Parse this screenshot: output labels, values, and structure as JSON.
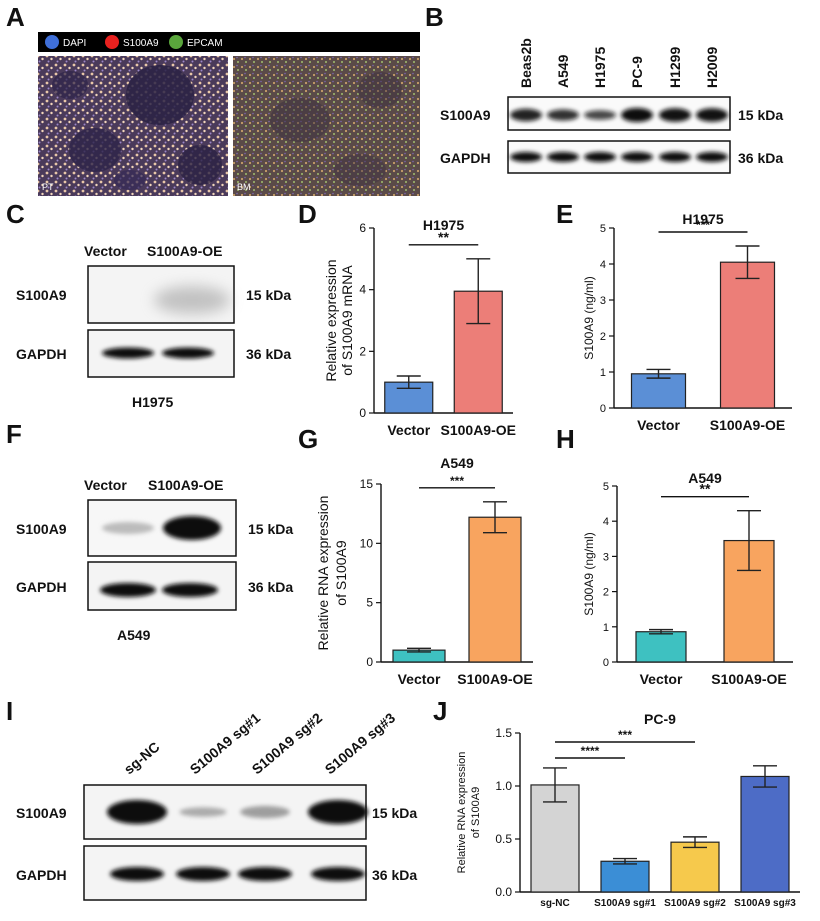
{
  "panels": {
    "A": {
      "letter": "A",
      "legend": [
        "DAPI",
        "S100A9",
        "EPCAM"
      ],
      "legend_colors": [
        "#3f6fd8",
        "#e8211f",
        "#5aa63c"
      ],
      "images": [
        "PT",
        "BM"
      ]
    },
    "B": {
      "letter": "B",
      "cell_lines": [
        "Beas2b",
        "A549",
        "H1975",
        "PC-9",
        "H1299",
        "H2009"
      ],
      "s100a9_intensity": [
        0.8,
        0.65,
        0.45,
        1.0,
        0.95,
        0.95
      ],
      "rows": [
        "S100A9",
        "GAPDH"
      ],
      "sizes": [
        "15 kDa",
        "36 kDa"
      ]
    },
    "C": {
      "letter": "C",
      "lanes": [
        "Vector",
        "S100A9-OE"
      ],
      "rows": [
        "S100A9",
        "GAPDH"
      ],
      "sizes": [
        "15 kDa",
        "36 kDa"
      ],
      "caption": "H1975"
    },
    "F": {
      "letter": "F",
      "lanes": [
        "Vector",
        "S100A9-OE"
      ],
      "rows": [
        "S100A9",
        "GAPDH"
      ],
      "sizes": [
        "15 kDa",
        "36 kDa"
      ],
      "caption": "A549"
    },
    "I": {
      "letter": "I",
      "lanes": [
        "sg-NC",
        "S100A9 sg#1",
        "S100A9 sg#2",
        "S100A9 sg#3"
      ],
      "s100a9_intensity": [
        1.0,
        0.2,
        0.35,
        1.0
      ],
      "rows": [
        "S100A9",
        "GAPDH"
      ],
      "sizes": [
        "15 kDa",
        "36 kDa"
      ]
    }
  },
  "chart_data": [
    {
      "id": "D",
      "letter": "D",
      "type": "bar",
      "title": "H1975",
      "ylabel": "Relative expression of S100A9 mRNA",
      "ylabel_lines": [
        "Relative expression",
        "of S100A9 mRNA"
      ],
      "categories": [
        "Vector",
        "S100A9-OE"
      ],
      "values": [
        1.0,
        3.95
      ],
      "errors": [
        0.2,
        1.05
      ],
      "colors": [
        "#5b8fd6",
        "#ec7e78"
      ],
      "ylim": [
        0,
        6
      ],
      "yticks": [
        "0",
        "2",
        "4",
        "6"
      ],
      "significance": [
        {
          "from": 0,
          "to": 1,
          "label": "**"
        }
      ]
    },
    {
      "id": "E",
      "letter": "E",
      "type": "bar",
      "title": "H1975",
      "ylabel": "S100A9 (ng/ml)",
      "ylabel_lines": [
        "S100A9 (ng/ml)"
      ],
      "categories": [
        "Vector",
        "S100A9-OE"
      ],
      "values": [
        0.95,
        4.05
      ],
      "errors": [
        0.12,
        0.45
      ],
      "colors": [
        "#5b8fd6",
        "#ec7e78"
      ],
      "ylim": [
        0,
        5
      ],
      "yticks": [
        "0",
        "1",
        "2",
        "3",
        "4",
        "5"
      ],
      "significance": [
        {
          "from": 0,
          "to": 1,
          "label": "***"
        }
      ]
    },
    {
      "id": "G",
      "letter": "G",
      "type": "bar",
      "title": "A549",
      "ylabel": "Relative RNA expression of S100A9",
      "ylabel_lines": [
        "Relative RNA expression",
        "of S100A9"
      ],
      "categories": [
        "Vector",
        "S100A9-OE"
      ],
      "values": [
        1.0,
        12.2
      ],
      "errors": [
        0.15,
        1.3
      ],
      "colors": [
        "#3ec1c1",
        "#f8a45f"
      ],
      "ylim": [
        0,
        15
      ],
      "yticks": [
        "0",
        "5",
        "10",
        "15"
      ],
      "significance": [
        {
          "from": 0,
          "to": 1,
          "label": "***"
        }
      ]
    },
    {
      "id": "H",
      "letter": "H",
      "type": "bar",
      "title": "A549",
      "ylabel": "S100A9 (ng/ml)",
      "ylabel_lines": [
        "S100A9 (ng/ml)"
      ],
      "categories": [
        "Vector",
        "S100A9-OE"
      ],
      "values": [
        0.86,
        3.45
      ],
      "errors": [
        0.06,
        0.85
      ],
      "colors": [
        "#3ec1c1",
        "#f8a45f"
      ],
      "ylim": [
        0,
        5
      ],
      "yticks": [
        "0",
        "1",
        "2",
        "3",
        "4",
        "5"
      ],
      "significance": [
        {
          "from": 0,
          "to": 1,
          "label": "**"
        }
      ]
    },
    {
      "id": "J",
      "letter": "J",
      "type": "bar",
      "title": "PC-9",
      "ylabel": "Relative RNA expression of S100A9",
      "ylabel_lines": [
        "Relative RNA expression",
        "of S100A9"
      ],
      "categories": [
        "sg-NC",
        "S100A9 sg#1",
        "S100A9 sg#2",
        "S100A9 sg#3"
      ],
      "values": [
        1.01,
        0.29,
        0.47,
        1.09
      ],
      "errors": [
        0.16,
        0.025,
        0.05,
        0.1
      ],
      "colors": [
        "#d4d4d4",
        "#3b8ed6",
        "#f6c94c",
        "#4d6cc6"
      ],
      "ylim": [
        0,
        1.5
      ],
      "yticks": [
        "0.0",
        "0.5",
        "1.0",
        "1.5"
      ],
      "significance": [
        {
          "from": 0,
          "to": 1,
          "label": "****"
        },
        {
          "from": 0,
          "to": 2,
          "label": "***"
        }
      ]
    }
  ]
}
